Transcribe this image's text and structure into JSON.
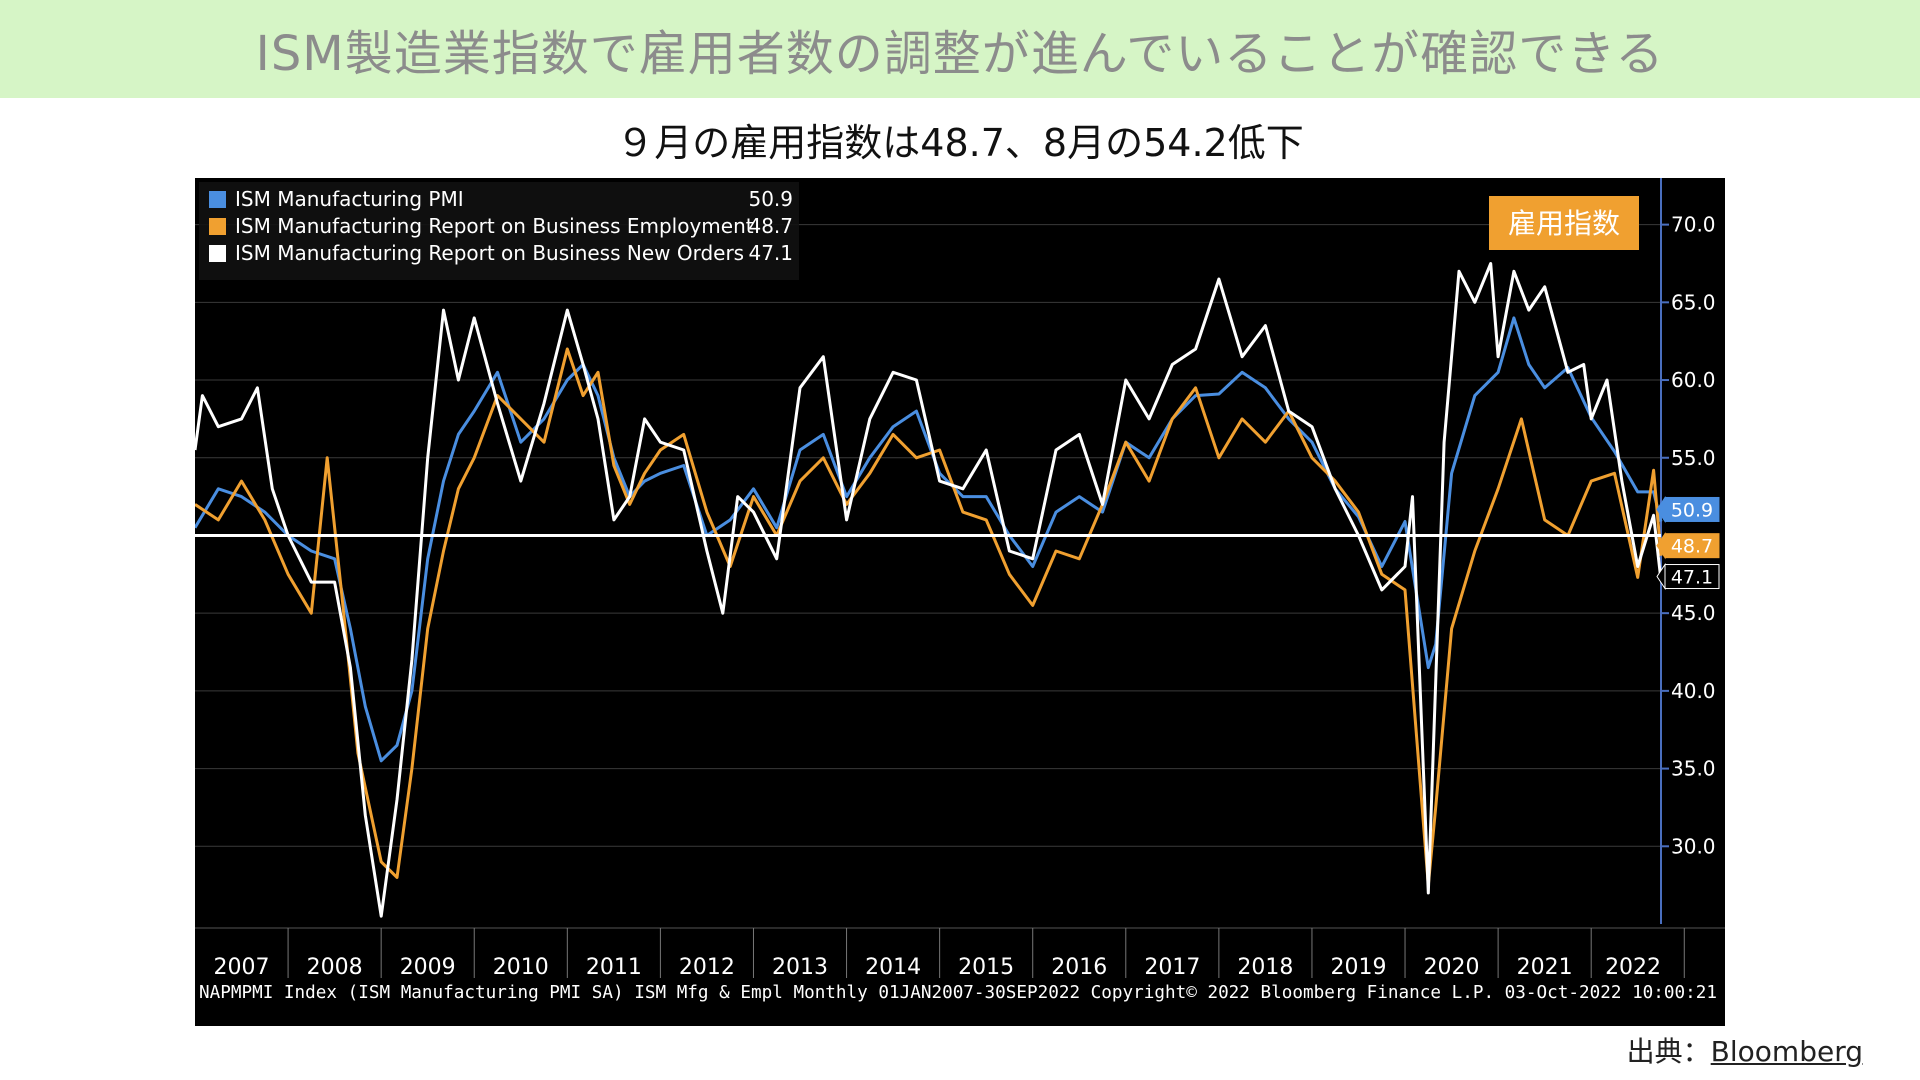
{
  "banner": {
    "title": "ISM製造業指数で雇用者数の調整が進んでいることが確認できる"
  },
  "subtitle": "９月の雇用指数は48.7、8月の54.2低下",
  "source": {
    "label": "出典：",
    "link_text": "Bloomberg"
  },
  "colors": {
    "background": "#000000",
    "pmi": "#4a8ee0",
    "employment": "#f0a030",
    "new_orders": "#ffffff",
    "badge": "#f0a030",
    "reference_line": "#ffffff",
    "banner_bg": "#d6f5c6"
  },
  "chart_data": {
    "type": "line",
    "title": "",
    "badge": "雇用指数",
    "footer": "NAPMPMI Index (ISM Manufacturing PMI SA) ISM Mfg & Empl  Monthly 01JAN2007-30SEP2022 Copyright© 2022 Bloomberg Finance L.P. 03-Oct-2022 10:00:21",
    "xlim": [
      2007.0,
      2022.75
    ],
    "ylim": [
      25.0,
      73.0
    ],
    "reference_line": 50.0,
    "grid": true,
    "legend_position": "top-left",
    "y_ticks": [
      "30.0",
      "35.0",
      "40.0",
      "45.0",
      "55.0",
      "60.0",
      "65.0",
      "70.0"
    ],
    "y_tick_values": [
      30,
      35,
      40,
      45,
      55,
      60,
      65,
      70
    ],
    "x_labels": [
      "2007",
      "2008",
      "2009",
      "2010",
      "2011",
      "2012",
      "2013",
      "2014",
      "2015",
      "2016",
      "2017",
      "2018",
      "2019",
      "2020",
      "2021",
      "2022"
    ],
    "last_value_tags": [
      {
        "series": "ISM Manufacturing PMI",
        "label": "50.9",
        "value": 50.9
      },
      {
        "series": "ISM Manufacturing Report on Business Employment",
        "label": "48.7",
        "value": 48.7
      },
      {
        "series": "ISM Manufacturing Report on Business New Orders",
        "label": "47.1",
        "value": 47.1
      }
    ],
    "series": [
      {
        "name": "ISM Manufacturing PMI",
        "legend_value": "50.9",
        "color": "#4a8ee0",
        "points": [
          [
            2007.0,
            50.5
          ],
          [
            2007.25,
            53.0
          ],
          [
            2007.5,
            52.5
          ],
          [
            2007.75,
            51.5
          ],
          [
            2008.0,
            50.0
          ],
          [
            2008.25,
            49.0
          ],
          [
            2008.5,
            48.5
          ],
          [
            2008.67,
            44.0
          ],
          [
            2008.83,
            39.0
          ],
          [
            2009.0,
            35.5
          ],
          [
            2009.17,
            36.5
          ],
          [
            2009.33,
            40.0
          ],
          [
            2009.5,
            48.5
          ],
          [
            2009.67,
            53.5
          ],
          [
            2009.83,
            56.5
          ],
          [
            2010.0,
            58.0
          ],
          [
            2010.25,
            60.5
          ],
          [
            2010.5,
            56.0
          ],
          [
            2010.75,
            57.5
          ],
          [
            2011.0,
            60.0
          ],
          [
            2011.17,
            61.0
          ],
          [
            2011.33,
            59.0
          ],
          [
            2011.5,
            55.0
          ],
          [
            2011.67,
            52.5
          ],
          [
            2011.83,
            53.5
          ],
          [
            2012.0,
            54.0
          ],
          [
            2012.25,
            54.5
          ],
          [
            2012.5,
            50.0
          ],
          [
            2012.75,
            51.0
          ],
          [
            2013.0,
            53.0
          ],
          [
            2013.25,
            50.5
          ],
          [
            2013.5,
            55.5
          ],
          [
            2013.75,
            56.5
          ],
          [
            2014.0,
            52.5
          ],
          [
            2014.25,
            55.0
          ],
          [
            2014.5,
            57.0
          ],
          [
            2014.75,
            58.0
          ],
          [
            2015.0,
            54.0
          ],
          [
            2015.25,
            52.5
          ],
          [
            2015.5,
            52.5
          ],
          [
            2015.75,
            50.0
          ],
          [
            2016.0,
            48.0
          ],
          [
            2016.25,
            51.5
          ],
          [
            2016.5,
            52.5
          ],
          [
            2016.75,
            51.5
          ],
          [
            2017.0,
            56.0
          ],
          [
            2017.25,
            55.0
          ],
          [
            2017.5,
            57.5
          ],
          [
            2017.75,
            59.0
          ],
          [
            2018.0,
            59.1
          ],
          [
            2018.25,
            60.5
          ],
          [
            2018.5,
            59.5
          ],
          [
            2018.75,
            57.5
          ],
          [
            2019.0,
            56.0
          ],
          [
            2019.25,
            53.0
          ],
          [
            2019.5,
            51.2
          ],
          [
            2019.75,
            48.0
          ],
          [
            2020.0,
            50.9
          ],
          [
            2020.25,
            41.5
          ],
          [
            2020.33,
            43.0
          ],
          [
            2020.5,
            54.0
          ],
          [
            2020.75,
            59.0
          ],
          [
            2021.0,
            60.5
          ],
          [
            2021.17,
            64.0
          ],
          [
            2021.33,
            61.0
          ],
          [
            2021.5,
            59.5
          ],
          [
            2021.75,
            60.8
          ],
          [
            2022.0,
            57.6
          ],
          [
            2022.25,
            55.4
          ],
          [
            2022.5,
            52.8
          ],
          [
            2022.67,
            52.8
          ],
          [
            2022.75,
            50.9
          ]
        ]
      },
      {
        "name": "ISM Manufacturing Report on Business Employment",
        "legend_value": "48.7",
        "color": "#f0a030",
        "points": [
          [
            2007.0,
            52.0
          ],
          [
            2007.25,
            51.0
          ],
          [
            2007.5,
            53.5
          ],
          [
            2007.75,
            51.0
          ],
          [
            2008.0,
            47.5
          ],
          [
            2008.25,
            45.0
          ],
          [
            2008.42,
            55.0
          ],
          [
            2008.58,
            46.0
          ],
          [
            2008.75,
            36.0
          ],
          [
            2009.0,
            29.0
          ],
          [
            2009.17,
            28.0
          ],
          [
            2009.33,
            35.0
          ],
          [
            2009.5,
            44.0
          ],
          [
            2009.67,
            49.0
          ],
          [
            2009.83,
            53.0
          ],
          [
            2010.0,
            55.0
          ],
          [
            2010.25,
            59.0
          ],
          [
            2010.5,
            57.5
          ],
          [
            2010.75,
            56.0
          ],
          [
            2011.0,
            62.0
          ],
          [
            2011.17,
            59.0
          ],
          [
            2011.33,
            60.5
          ],
          [
            2011.5,
            54.5
          ],
          [
            2011.67,
            52.0
          ],
          [
            2011.83,
            54.0
          ],
          [
            2012.0,
            55.5
          ],
          [
            2012.25,
            56.5
          ],
          [
            2012.5,
            51.5
          ],
          [
            2012.75,
            48.0
          ],
          [
            2013.0,
            52.5
          ],
          [
            2013.25,
            50.0
          ],
          [
            2013.5,
            53.5
          ],
          [
            2013.75,
            55.0
          ],
          [
            2014.0,
            52.0
          ],
          [
            2014.25,
            54.0
          ],
          [
            2014.5,
            56.5
          ],
          [
            2014.75,
            55.0
          ],
          [
            2015.0,
            55.5
          ],
          [
            2015.25,
            51.5
          ],
          [
            2015.5,
            51.0
          ],
          [
            2015.75,
            47.5
          ],
          [
            2016.0,
            45.5
          ],
          [
            2016.25,
            49.0
          ],
          [
            2016.5,
            48.5
          ],
          [
            2016.75,
            52.0
          ],
          [
            2017.0,
            56.0
          ],
          [
            2017.25,
            53.5
          ],
          [
            2017.5,
            57.5
          ],
          [
            2017.75,
            59.5
          ],
          [
            2018.0,
            55.0
          ],
          [
            2018.25,
            57.5
          ],
          [
            2018.5,
            56.0
          ],
          [
            2018.75,
            58.0
          ],
          [
            2019.0,
            55.0
          ],
          [
            2019.25,
            53.5
          ],
          [
            2019.5,
            51.5
          ],
          [
            2019.75,
            47.5
          ],
          [
            2020.0,
            46.5
          ],
          [
            2020.25,
            27.5
          ],
          [
            2020.33,
            32.5
          ],
          [
            2020.5,
            44.0
          ],
          [
            2020.75,
            49.0
          ],
          [
            2021.0,
            53.0
          ],
          [
            2021.25,
            57.5
          ],
          [
            2021.5,
            51.0
          ],
          [
            2021.75,
            50.0
          ],
          [
            2022.0,
            53.5
          ],
          [
            2022.25,
            54.0
          ],
          [
            2022.5,
            47.3
          ],
          [
            2022.67,
            54.2
          ],
          [
            2022.75,
            48.7
          ]
        ]
      },
      {
        "name": "ISM Manufacturing Report on Business New Orders",
        "legend_value": "47.1",
        "color": "#ffffff",
        "points": [
          [
            2007.0,
            55.5
          ],
          [
            2007.08,
            59.0
          ],
          [
            2007.25,
            57.0
          ],
          [
            2007.5,
            57.5
          ],
          [
            2007.67,
            59.5
          ],
          [
            2007.83,
            53.0
          ],
          [
            2008.0,
            50.0
          ],
          [
            2008.25,
            47.0
          ],
          [
            2008.5,
            47.0
          ],
          [
            2008.67,
            41.5
          ],
          [
            2008.83,
            32.0
          ],
          [
            2009.0,
            25.5
          ],
          [
            2009.17,
            33.0
          ],
          [
            2009.33,
            42.0
          ],
          [
            2009.5,
            55.0
          ],
          [
            2009.67,
            64.5
          ],
          [
            2009.83,
            60.0
          ],
          [
            2010.0,
            64.0
          ],
          [
            2010.25,
            58.5
          ],
          [
            2010.5,
            53.5
          ],
          [
            2010.75,
            58.5
          ],
          [
            2011.0,
            64.5
          ],
          [
            2011.17,
            61.0
          ],
          [
            2011.33,
            57.5
          ],
          [
            2011.5,
            51.0
          ],
          [
            2011.67,
            52.5
          ],
          [
            2011.83,
            57.5
          ],
          [
            2012.0,
            56.0
          ],
          [
            2012.25,
            55.5
          ],
          [
            2012.5,
            49.0
          ],
          [
            2012.67,
            45.0
          ],
          [
            2012.83,
            52.5
          ],
          [
            2013.0,
            51.5
          ],
          [
            2013.25,
            48.5
          ],
          [
            2013.5,
            59.5
          ],
          [
            2013.75,
            61.5
          ],
          [
            2014.0,
            51.0
          ],
          [
            2014.25,
            57.5
          ],
          [
            2014.5,
            60.5
          ],
          [
            2014.75,
            60.0
          ],
          [
            2015.0,
            53.5
          ],
          [
            2015.25,
            53.0
          ],
          [
            2015.5,
            55.5
          ],
          [
            2015.75,
            49.0
          ],
          [
            2016.0,
            48.5
          ],
          [
            2016.25,
            55.5
          ],
          [
            2016.5,
            56.5
          ],
          [
            2016.75,
            52.0
          ],
          [
            2017.0,
            60.0
          ],
          [
            2017.25,
            57.5
          ],
          [
            2017.5,
            61.0
          ],
          [
            2017.75,
            62.0
          ],
          [
            2018.0,
            66.5
          ],
          [
            2018.25,
            61.5
          ],
          [
            2018.5,
            63.5
          ],
          [
            2018.75,
            58.0
          ],
          [
            2019.0,
            57.0
          ],
          [
            2019.25,
            53.0
          ],
          [
            2019.5,
            50.0
          ],
          [
            2019.75,
            46.5
          ],
          [
            2020.0,
            48.0
          ],
          [
            2020.08,
            52.5
          ],
          [
            2020.25,
            27.0
          ],
          [
            2020.42,
            56.0
          ],
          [
            2020.58,
            67.0
          ],
          [
            2020.75,
            65.0
          ],
          [
            2020.92,
            67.5
          ],
          [
            2021.0,
            61.5
          ],
          [
            2021.17,
            67.0
          ],
          [
            2021.33,
            64.5
          ],
          [
            2021.5,
            66.0
          ],
          [
            2021.75,
            60.5
          ],
          [
            2021.92,
            61.0
          ],
          [
            2022.0,
            57.5
          ],
          [
            2022.17,
            60.0
          ],
          [
            2022.33,
            53.5
          ],
          [
            2022.5,
            48.0
          ],
          [
            2022.67,
            51.3
          ],
          [
            2022.75,
            47.1
          ]
        ]
      }
    ]
  }
}
